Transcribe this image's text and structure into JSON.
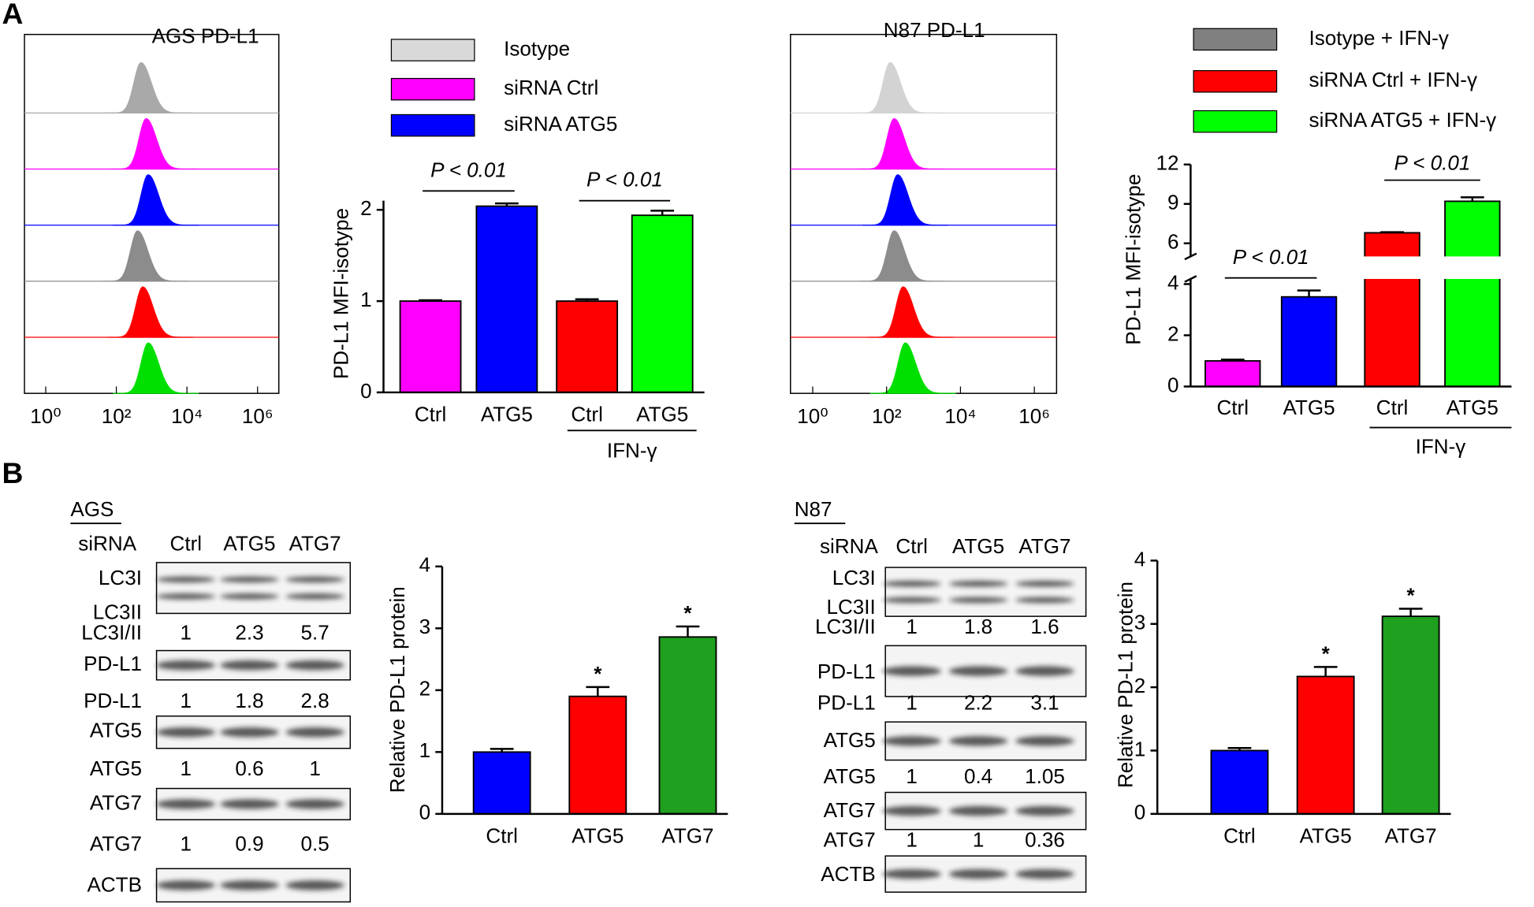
{
  "panels": [
    "A",
    "B"
  ],
  "chart_data": [
    {
      "type": "flow",
      "title": "AGS PD-L1",
      "log_x": true,
      "xlim": [
        0.25,
        4000000
      ],
      "xticks": [
        {
          "value": 1,
          "label": "10⁰"
        },
        {
          "value": 100,
          "label": "10²"
        },
        {
          "value": 10000,
          "label": "10⁴"
        },
        {
          "value": 1000000,
          "label": "10⁶"
        }
      ],
      "series": [
        {
          "color": "#a9a9a9",
          "peak": 500
        },
        {
          "color": "#ff00ff",
          "peak": 700
        },
        {
          "color": "#0000ff",
          "peak": 800
        },
        {
          "color": "#8c8c8c",
          "peak": 400
        },
        {
          "color": "#ff0000",
          "peak": 560
        },
        {
          "color": "#00e000",
          "peak": 800
        }
      ]
    },
    {
      "type": "bar",
      "ylabel": "PD-L1 MFI-isotype",
      "categories": [
        "Ctrl",
        "ATG5",
        "Ctrl",
        "ATG5"
      ],
      "values": [
        1.0,
        2.04,
        1.0,
        1.94
      ],
      "errors": [
        0.01,
        0.03,
        0.02,
        0.05
      ],
      "colors": [
        "#ff00ff",
        "#0000ff",
        "#ff0000",
        "#00ff00"
      ],
      "ylim": [
        0,
        2.1
      ],
      "yticks": [
        0,
        1,
        2
      ],
      "group_label": {
        "text": "IFN-γ",
        "from": 2,
        "to": 3
      },
      "annotations": [
        {
          "text": "P < 0.01",
          "from": 0,
          "to": 1
        },
        {
          "text": "P < 0.01",
          "from": 2,
          "to": 3
        }
      ],
      "legend": [
        {
          "name": "Isotype",
          "color": "#d9d9d9"
        },
        {
          "name": "siRNA Ctrl",
          "color": "#ff00ff"
        },
        {
          "name": "siRNA  ATG5",
          "color": "#0000ff"
        }
      ]
    },
    {
      "type": "flow",
      "title": "N87 PD-L1",
      "log_x": true,
      "xlim": [
        0.25,
        4000000
      ],
      "xticks": [
        {
          "value": 1,
          "label": "10⁰"
        },
        {
          "value": 100,
          "label": "10²"
        },
        {
          "value": 10000,
          "label": "10⁴"
        },
        {
          "value": 1000000,
          "label": "10⁶"
        }
      ],
      "series": [
        {
          "color": "#d3d3d3",
          "peak": 125
        },
        {
          "color": "#ff00ff",
          "peak": 160
        },
        {
          "color": "#0000ff",
          "peak": 200
        },
        {
          "color": "#8c8c8c",
          "peak": 160
        },
        {
          "color": "#ff0000",
          "peak": 280
        },
        {
          "color": "#00e000",
          "peak": 320
        }
      ]
    },
    {
      "type": "bar",
      "ylabel": "PD-L1 MFI-isotype",
      "categories": [
        "Ctrl",
        "ATG5",
        "Ctrl",
        "ATG5"
      ],
      "values": [
        1.0,
        3.5,
        6.8,
        9.2
      ],
      "errors": [
        0.05,
        0.25,
        0.05,
        0.3
      ],
      "colors": [
        "#ff00ff",
        "#0000ff",
        "#ff0000",
        "#00ff00"
      ],
      "ylim": [
        0,
        12
      ],
      "axis_break": [
        4.2,
        5
      ],
      "yticks": [
        0,
        2,
        4,
        6,
        9,
        12
      ],
      "group_label": {
        "text": "IFN-γ",
        "from": 2,
        "to": 3
      },
      "annotations": [
        {
          "text": "P < 0.01",
          "from": 0,
          "to": 1
        },
        {
          "text": "P < 0.01",
          "from": 2,
          "to": 3
        }
      ],
      "legend": [
        {
          "name": "Isotype + IFN-γ",
          "color": "#808080"
        },
        {
          "name": "siRNA Ctrl + IFN-γ",
          "color": "#ff0000"
        },
        {
          "name": "siRNA  ATG5 + IFN-γ",
          "color": "#00ff00"
        }
      ]
    },
    {
      "type": "bar",
      "ylabel": "Relative PD-L1 protein",
      "categories": [
        "Ctrl",
        "ATG5",
        "ATG7"
      ],
      "values": [
        1.0,
        1.9,
        2.86
      ],
      "errors": [
        0.05,
        0.15,
        0.17
      ],
      "colors": [
        "#0000ff",
        "#ff0000",
        "#1fa01f"
      ],
      "ylim": [
        0,
        4
      ],
      "yticks": [
        0,
        1,
        2,
        3,
        4
      ],
      "significance": [
        null,
        "*",
        "*"
      ]
    },
    {
      "type": "bar",
      "ylabel": "Relative PD-L1 protein",
      "categories": [
        "Ctrl",
        "ATG5",
        "ATG7"
      ],
      "values": [
        1.0,
        2.17,
        3.12
      ],
      "errors": [
        0.04,
        0.15,
        0.12
      ],
      "colors": [
        "#0000ff",
        "#ff0000",
        "#1fa01f"
      ],
      "ylim": [
        0,
        4
      ],
      "yticks": [
        0,
        1,
        2,
        3,
        4
      ],
      "significance": [
        null,
        "*",
        "*"
      ]
    }
  ],
  "blots": [
    {
      "title": "AGS",
      "header": [
        "siRNA",
        "Ctrl",
        "ATG5",
        "ATG7"
      ],
      "rows": [
        {
          "labels": [
            "LC3I",
            "LC3II"
          ],
          "quant_label": "LC3I/II",
          "quant": [
            1,
            2.3,
            5.7
          ]
        },
        {
          "labels": [
            "PD-L1"
          ],
          "quant_label": "PD-L1",
          "quant": [
            1,
            1.8,
            2.8
          ]
        },
        {
          "labels": [
            "ATG5"
          ],
          "quant_label": "ATG5",
          "quant": [
            1,
            0.6,
            1
          ]
        },
        {
          "labels": [
            "ATG7"
          ],
          "quant_label": "ATG7",
          "quant": [
            1,
            0.9,
            0.5
          ]
        },
        {
          "labels": [
            "ACTB"
          ]
        }
      ]
    },
    {
      "title": "N87",
      "header": [
        "siRNA",
        "Ctrl",
        "ATG5",
        "ATG7"
      ],
      "rows": [
        {
          "labels": [
            "LC3I",
            "LC3II"
          ],
          "quant_label": "LC3I/II",
          "quant": [
            1,
            1.8,
            1.6
          ]
        },
        {
          "labels": [
            "PD-L1"
          ],
          "quant_label": "PD-L1",
          "quant": [
            1,
            2.2,
            3.1
          ]
        },
        {
          "labels": [
            "ATG5"
          ],
          "quant_label": "ATG5",
          "quant": [
            1,
            0.4,
            1.05
          ]
        },
        {
          "labels": [
            "ATG7"
          ],
          "quant_label": "ATG7",
          "quant": [
            1,
            1,
            0.36
          ]
        },
        {
          "labels": [
            "ACTB"
          ]
        }
      ]
    }
  ]
}
